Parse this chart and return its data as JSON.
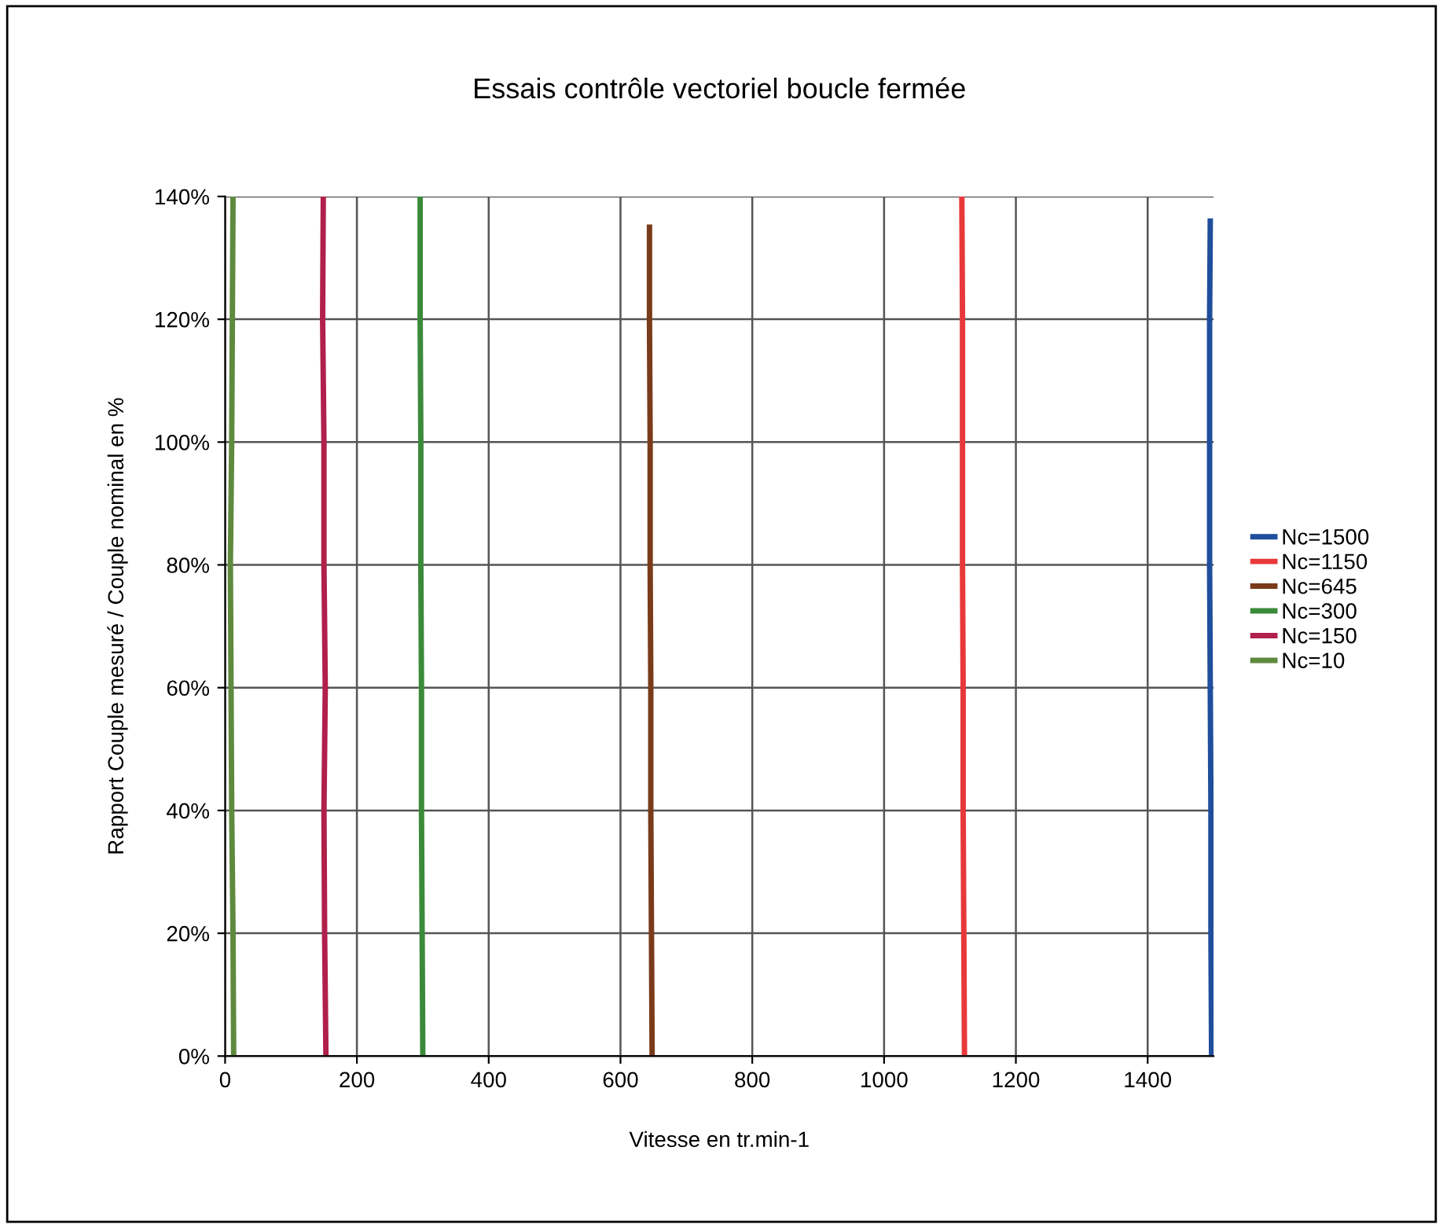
{
  "chart_data": {
    "type": "line",
    "title": "Essais contrôle vectoriel boucle fermée",
    "xlabel": "Vitesse en tr.min-1",
    "ylabel": "Rapport Couple mesuré / Couple nominal en %",
    "xlim": [
      0,
      1500
    ],
    "xticks": [
      0,
      200,
      400,
      600,
      800,
      1000,
      1200,
      1400
    ],
    "ylim": [
      0,
      140
    ],
    "yticks": [
      {
        "value": 0,
        "label": "0%"
      },
      {
        "value": 20,
        "label": "20%"
      },
      {
        "value": 40,
        "label": "40%"
      },
      {
        "value": 60,
        "label": "60%"
      },
      {
        "value": 80,
        "label": "80%"
      },
      {
        "value": 100,
        "label": "100%"
      },
      {
        "value": 120,
        "label": "120%"
      },
      {
        "value": 140,
        "label": "140%"
      }
    ],
    "grid": true,
    "legend": "right",
    "marker": "none",
    "line_style": "solid",
    "series": [
      {
        "name": "Nc=1500",
        "color": "#1f4e9c",
        "x": [
          1497,
          1496,
          1496,
          1495,
          1494,
          1494,
          1494,
          1495
        ],
        "values": [
          0,
          20,
          40,
          60,
          80,
          100,
          120,
          136
        ]
      },
      {
        "name": "Nc=1150",
        "color": "#e8383a",
        "x": [
          1122,
          1121,
          1120,
          1120,
          1119,
          1119,
          1119,
          1118
        ],
        "values": [
          0,
          20,
          40,
          60,
          80,
          100,
          120,
          140
        ]
      },
      {
        "name": "Nc=645",
        "color": "#7a3b1a",
        "x": [
          648,
          647,
          646,
          646,
          645,
          645,
          644,
          644
        ],
        "values": [
          0,
          20,
          40,
          60,
          80,
          100,
          120,
          135
        ]
      },
      {
        "name": "Nc=300",
        "color": "#3a8a3a",
        "x": [
          300,
          299,
          298,
          298,
          297,
          297,
          296,
          296
        ],
        "values": [
          0,
          20,
          40,
          60,
          80,
          100,
          120,
          140
        ]
      },
      {
        "name": "Nc=150",
        "color": "#b0204a",
        "x": [
          153,
          151,
          150,
          152,
          150,
          150,
          148,
          149
        ],
        "values": [
          0,
          20,
          40,
          60,
          80,
          100,
          120,
          140
        ]
      },
      {
        "name": "Nc=10",
        "color": "#5e8a3e",
        "x": [
          13,
          12,
          10,
          9,
          8,
          10,
          11,
          12
        ],
        "values": [
          0,
          20,
          40,
          60,
          80,
          100,
          120,
          140
        ]
      }
    ]
  }
}
